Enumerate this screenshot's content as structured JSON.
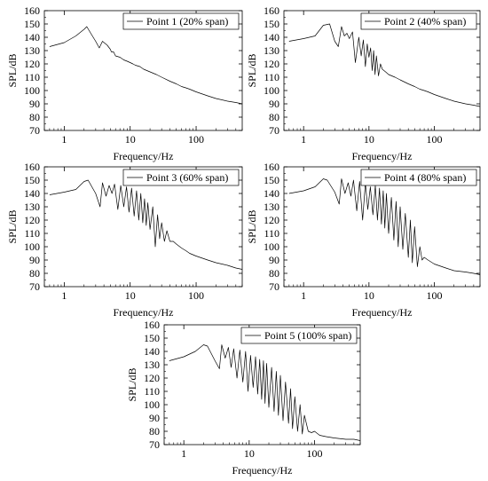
{
  "chart_data": [
    {
      "type": "line",
      "series": [
        {
          "name": "Point 1 (20% span)",
          "x": [
            0.6,
            1,
            1.5,
            2,
            2.2,
            2.6,
            3,
            3.4,
            3.8,
            4.5,
            5,
            5.2,
            5.6,
            6,
            7,
            8,
            9,
            10,
            11,
            12,
            14,
            16,
            20,
            25,
            30,
            40,
            50,
            60,
            70,
            80,
            100,
            150,
            200,
            300,
            400,
            500
          ],
          "y": [
            133,
            136,
            141,
            146,
            148,
            142,
            137,
            132,
            137,
            134,
            131,
            129,
            129,
            126,
            125,
            123,
            122,
            121,
            120,
            119,
            118,
            116,
            114,
            112,
            110,
            107,
            105,
            103,
            102,
            101,
            99,
            96,
            94,
            92,
            91,
            90
          ]
        }
      ],
      "xlabel": "Frequency/Hz",
      "ylabel": "SPL/dB",
      "xscale": "log",
      "xlim": [
        0.5,
        500
      ],
      "ylim": [
        70,
        160
      ],
      "xticks": [
        1,
        10,
        100
      ],
      "xtick_labels": [
        "1",
        "10",
        "100"
      ],
      "yticks": [
        70,
        80,
        90,
        100,
        110,
        120,
        130,
        140,
        150,
        160
      ],
      "ytick_labels": [
        "70",
        "80",
        "90",
        "100",
        "110",
        "120",
        "130",
        "140",
        "150",
        "160"
      ],
      "legend": "top-right",
      "grid": false
    },
    {
      "type": "line",
      "series": [
        {
          "name": "Point 2 (40% span)",
          "x": [
            0.6,
            1,
            1.5,
            2,
            2.5,
            3,
            3.4,
            3.8,
            4.2,
            4.6,
            5,
            5.6,
            6.2,
            7,
            7.6,
            8.2,
            8.8,
            9.4,
            10,
            10.6,
            11.2,
            11.8,
            12.4,
            13,
            14,
            15,
            16,
            18,
            20,
            25,
            30,
            40,
            50,
            60,
            70,
            80,
            100,
            150,
            200,
            300,
            400,
            500
          ],
          "y": [
            137,
            139,
            141,
            149,
            150,
            137,
            133,
            148,
            141,
            143,
            139,
            144,
            121,
            140,
            126,
            138,
            118,
            135,
            125,
            132,
            115,
            130,
            112,
            126,
            111,
            120,
            116,
            114,
            112,
            110,
            108,
            105,
            103,
            101,
            100,
            99,
            97,
            94,
            92,
            90,
            89,
            88
          ]
        }
      ],
      "xlabel": "Frequency/Hz",
      "ylabel": "SPL/dB",
      "xscale": "log",
      "xlim": [
        0.5,
        500
      ],
      "ylim": [
        70,
        160
      ],
      "xticks": [
        1,
        10,
        100
      ],
      "xtick_labels": [
        "1",
        "10",
        "100"
      ],
      "yticks": [
        70,
        80,
        90,
        100,
        110,
        120,
        130,
        140,
        150,
        160
      ],
      "ytick_labels": [
        "70",
        "80",
        "90",
        "100",
        "110",
        "120",
        "130",
        "140",
        "150",
        "160"
      ],
      "legend": "top-right",
      "grid": false
    },
    {
      "type": "line",
      "series": [
        {
          "name": "Point 3 (60% span)",
          "x": [
            0.6,
            1,
            1.5,
            2,
            2.3,
            3,
            3.5,
            3.8,
            4.3,
            4.8,
            5.3,
            5.8,
            6.5,
            7.2,
            8,
            8.8,
            9.6,
            10.5,
            11.5,
            12.5,
            13.5,
            14.5,
            15.5,
            16.5,
            17.5,
            18.5,
            20,
            22,
            24,
            26,
            28,
            30,
            33,
            36,
            40,
            45,
            50,
            60,
            70,
            80,
            100,
            150,
            200,
            300,
            400,
            500
          ],
          "y": [
            139,
            141,
            143,
            149,
            150,
            140,
            130,
            148,
            138,
            146,
            140,
            147,
            128,
            146,
            130,
            145,
            126,
            144,
            123,
            142,
            120,
            140,
            118,
            136,
            116,
            133,
            113,
            130,
            100,
            124,
            106,
            118,
            104,
            112,
            104,
            104,
            102,
            99,
            97,
            95,
            93,
            90,
            88,
            86,
            84,
            83
          ]
        }
      ],
      "xlabel": "Frequency/Hz",
      "ylabel": "SPL/dB",
      "xscale": "log",
      "xlim": [
        0.5,
        500
      ],
      "ylim": [
        70,
        160
      ],
      "xticks": [
        1,
        10,
        100
      ],
      "xtick_labels": [
        "1",
        "10",
        "100"
      ],
      "yticks": [
        70,
        80,
        90,
        100,
        110,
        120,
        130,
        140,
        150,
        160
      ],
      "ytick_labels": [
        "70",
        "80",
        "90",
        "100",
        "110",
        "120",
        "130",
        "140",
        "150",
        "160"
      ],
      "legend": "top-right",
      "grid": false
    },
    {
      "type": "line",
      "series": [
        {
          "name": "Point 4 (80% span)",
          "x": [
            0.6,
            1,
            1.5,
            2,
            2.3,
            3,
            3.5,
            3.8,
            4.3,
            4.8,
            5.3,
            5.8,
            6.5,
            7.2,
            8,
            8.8,
            9.6,
            10.5,
            11.5,
            12.5,
            13.5,
            14.5,
            15.5,
            16.5,
            17.5,
            18.5,
            20,
            22,
            24,
            26,
            28,
            30,
            33,
            36,
            40,
            43,
            46,
            50,
            55,
            60,
            65,
            70,
            80,
            100,
            150,
            200,
            300,
            400,
            500
          ],
          "y": [
            140,
            142,
            145,
            151,
            150,
            141,
            132,
            151,
            140,
            148,
            138,
            150,
            127,
            149,
            120,
            148,
            128,
            145,
            124,
            146,
            120,
            144,
            117,
            142,
            114,
            140,
            110,
            137,
            105,
            134,
            100,
            130,
            98,
            125,
            92,
            120,
            88,
            115,
            85,
            100,
            90,
            92,
            90,
            87,
            84,
            82,
            81,
            80,
            79
          ]
        }
      ],
      "xlabel": "Frequency/Hz",
      "ylabel": "SPL/dB",
      "xscale": "log",
      "xlim": [
        0.5,
        500
      ],
      "ylim": [
        70,
        160
      ],
      "xticks": [
        1,
        10,
        100
      ],
      "xtick_labels": [
        "1",
        "10",
        "100"
      ],
      "yticks": [
        70,
        80,
        90,
        100,
        110,
        120,
        130,
        140,
        150,
        160
      ],
      "ytick_labels": [
        "70",
        "80",
        "90",
        "100",
        "110",
        "120",
        "130",
        "140",
        "150",
        "160"
      ],
      "legend": "top-right",
      "grid": false
    },
    {
      "type": "line",
      "series": [
        {
          "name": "Point 5 (100% span)",
          "x": [
            0.6,
            1,
            1.5,
            2,
            2.3,
            3,
            3.5,
            3.8,
            4.3,
            4.8,
            5.3,
            5.8,
            6.5,
            7.2,
            8,
            8.8,
            9.6,
            10.5,
            11.5,
            12.5,
            13.5,
            14.5,
            15.5,
            16.5,
            17.5,
            18.5,
            20,
            22,
            24,
            26,
            28,
            30,
            33,
            36,
            40,
            43,
            46,
            50,
            55,
            60,
            65,
            70,
            80,
            90,
            100,
            120,
            150,
            200,
            300,
            400,
            500
          ],
          "y": [
            133,
            136,
            140,
            145,
            144,
            133,
            127,
            145,
            135,
            143,
            128,
            142,
            120,
            141,
            117,
            140,
            110,
            137,
            113,
            136,
            108,
            134,
            104,
            133,
            101,
            131,
            98,
            128,
            95,
            125,
            92,
            122,
            88,
            117,
            86,
            112,
            82,
            106,
            80,
            100,
            78,
            92,
            80,
            79,
            80,
            77,
            76,
            75,
            74,
            74,
            73
          ]
        }
      ],
      "xlabel": "Frequency/Hz",
      "ylabel": "SPL/dB",
      "xscale": "log",
      "xlim": [
        0.5,
        500
      ],
      "ylim": [
        70,
        160
      ],
      "xticks": [
        1,
        10,
        100
      ],
      "xtick_labels": [
        "1",
        "10",
        "100"
      ],
      "yticks": [
        70,
        80,
        90,
        100,
        110,
        120,
        130,
        140,
        150,
        160
      ],
      "ytick_labels": [
        "70",
        "80",
        "90",
        "100",
        "110",
        "120",
        "130",
        "140",
        "150",
        "160"
      ],
      "legend": "top-right",
      "grid": false
    }
  ]
}
